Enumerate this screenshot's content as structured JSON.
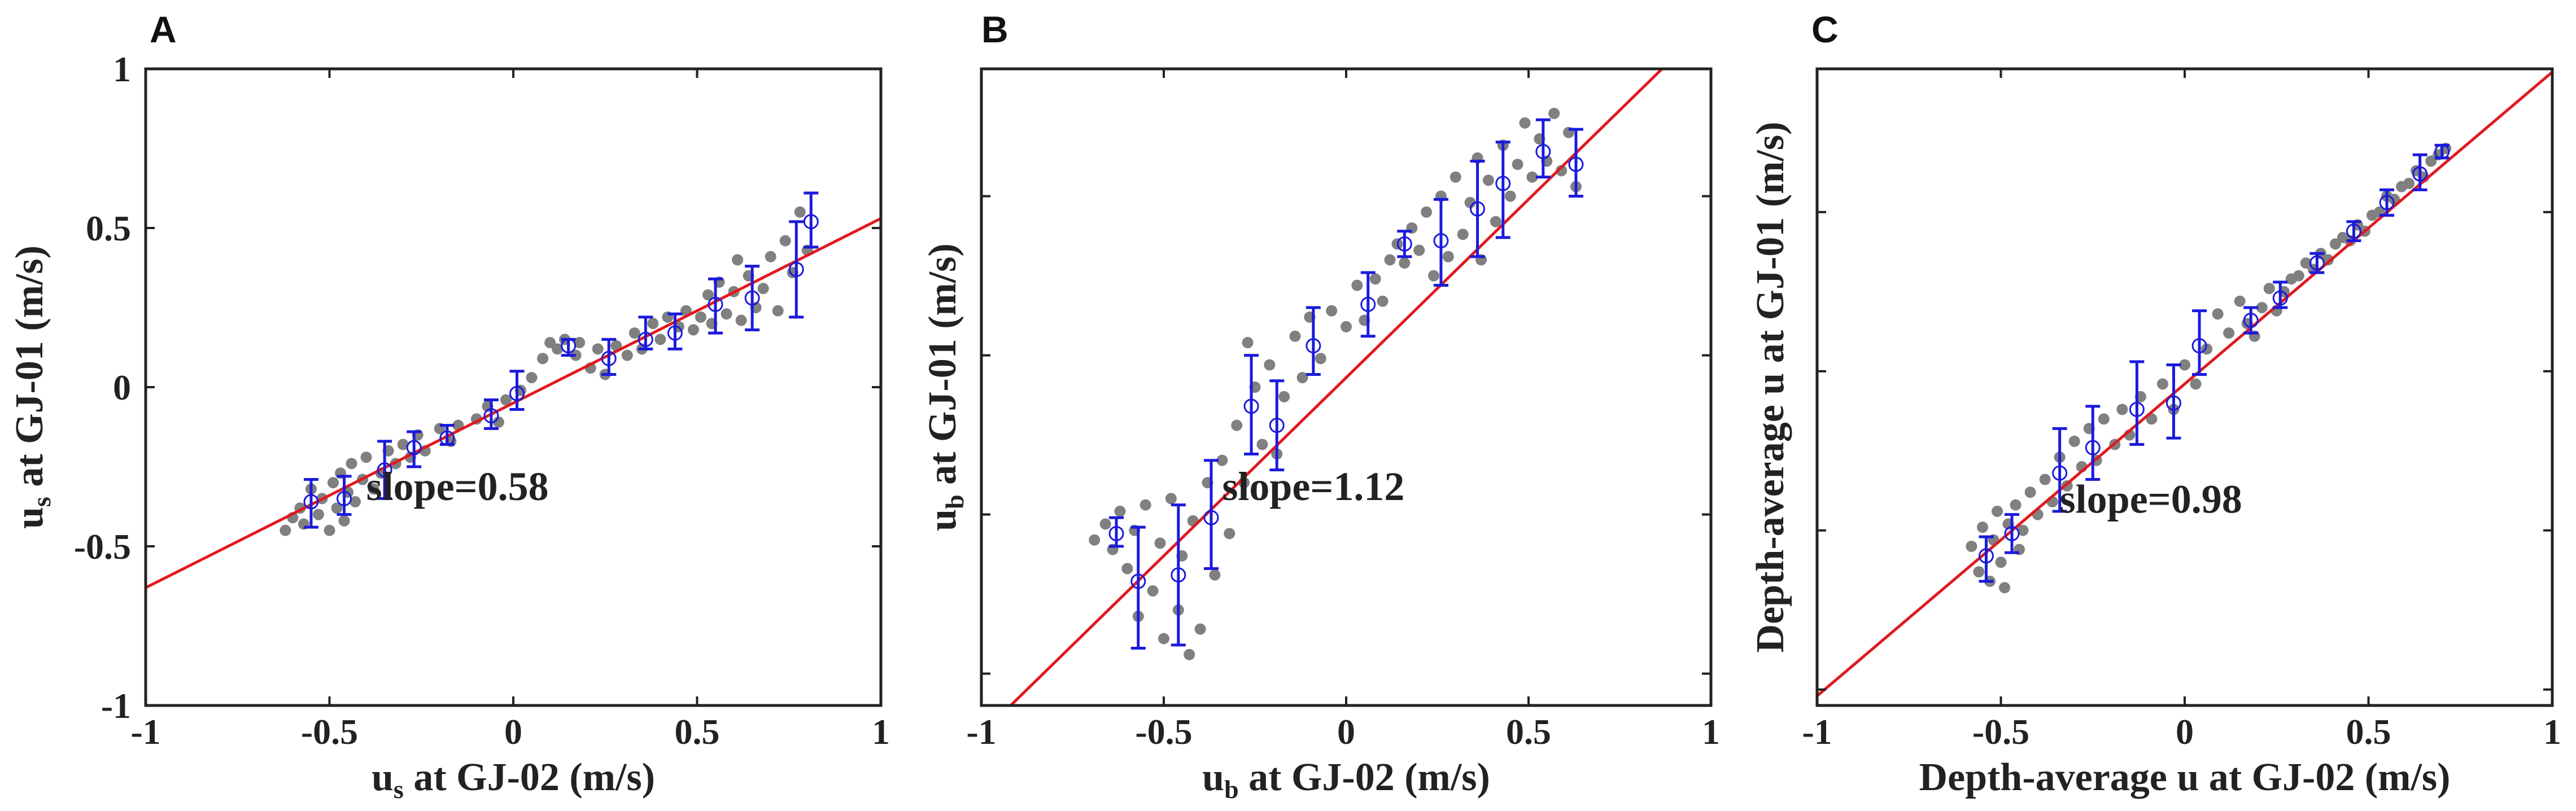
{
  "colors": {
    "scatter": "#808080",
    "errorbar": "#1a1adc",
    "fit": "#e0191f",
    "axis": "#222222",
    "background": "#ffffff"
  },
  "chart_data": [
    {
      "panel": "A",
      "type": "scatter",
      "xlabel": "u_s at GJ-02 (m/s)",
      "xlabel_parts": {
        "var": "u",
        "sub": "s",
        "rest": " at GJ-02 (m/s)"
      },
      "ylabel": "u_s at GJ-01 (m/s)",
      "ylabel_parts": {
        "var": "u",
        "sub": "s",
        "rest": " at GJ-01 (m/s)"
      },
      "xlim": [
        -1,
        1
      ],
      "ylim": [
        -1,
        1
      ],
      "xticks": [
        -1,
        -0.5,
        0,
        0.5,
        1
      ],
      "xtick_labels": [
        "-1",
        "-0.5",
        "0",
        "0.5",
        "1"
      ],
      "yticks": [
        -1,
        -0.5,
        0,
        0.5,
        1
      ],
      "ytick_labels": [
        "-1",
        "-0.5",
        "0",
        "0.5",
        "1"
      ],
      "annotation": "slope=0.58",
      "fit": {
        "slope": 0.58,
        "intercept": -0.05
      },
      "binned": [
        {
          "x": -0.55,
          "y": -0.36,
          "lo": -0.44,
          "hi": -0.29
        },
        {
          "x": -0.46,
          "y": -0.35,
          "lo": -0.4,
          "hi": -0.28
        },
        {
          "x": -0.35,
          "y": -0.26,
          "lo": -0.35,
          "hi": -0.17
        },
        {
          "x": -0.27,
          "y": -0.19,
          "lo": -0.25,
          "hi": -0.14
        },
        {
          "x": -0.18,
          "y": -0.16,
          "lo": -0.18,
          "hi": -0.12
        },
        {
          "x": -0.06,
          "y": -0.09,
          "lo": -0.13,
          "hi": -0.04
        },
        {
          "x": 0.01,
          "y": -0.02,
          "lo": -0.07,
          "hi": 0.05
        },
        {
          "x": 0.15,
          "y": 0.13,
          "lo": 0.1,
          "hi": 0.15
        },
        {
          "x": 0.26,
          "y": 0.09,
          "lo": 0.04,
          "hi": 0.15
        },
        {
          "x": 0.36,
          "y": 0.15,
          "lo": 0.12,
          "hi": 0.22
        },
        {
          "x": 0.44,
          "y": 0.17,
          "lo": 0.12,
          "hi": 0.23
        },
        {
          "x": 0.55,
          "y": 0.26,
          "lo": 0.17,
          "hi": 0.34
        },
        {
          "x": 0.65,
          "y": 0.28,
          "lo": 0.18,
          "hi": 0.38
        },
        {
          "x": 0.77,
          "y": 0.37,
          "lo": 0.22,
          "hi": 0.52
        },
        {
          "x": 0.81,
          "y": 0.52,
          "lo": 0.44,
          "hi": 0.61
        }
      ],
      "scatter": [
        {
          "x": -0.62,
          "y": -0.45
        },
        {
          "x": -0.6,
          "y": -0.41
        },
        {
          "x": -0.58,
          "y": -0.38
        },
        {
          "x": -0.57,
          "y": -0.43
        },
        {
          "x": -0.55,
          "y": -0.32
        },
        {
          "x": -0.53,
          "y": -0.4
        },
        {
          "x": -0.52,
          "y": -0.35
        },
        {
          "x": -0.5,
          "y": -0.45
        },
        {
          "x": -0.49,
          "y": -0.3
        },
        {
          "x": -0.48,
          "y": -0.38
        },
        {
          "x": -0.47,
          "y": -0.27
        },
        {
          "x": -0.46,
          "y": -0.42
        },
        {
          "x": -0.45,
          "y": -0.33
        },
        {
          "x": -0.44,
          "y": -0.24
        },
        {
          "x": -0.43,
          "y": -0.36
        },
        {
          "x": -0.41,
          "y": -0.29
        },
        {
          "x": -0.4,
          "y": -0.22
        },
        {
          "x": -0.38,
          "y": -0.32
        },
        {
          "x": -0.36,
          "y": -0.27
        },
        {
          "x": -0.34,
          "y": -0.2
        },
        {
          "x": -0.32,
          "y": -0.24
        },
        {
          "x": -0.3,
          "y": -0.18
        },
        {
          "x": -0.28,
          "y": -0.22
        },
        {
          "x": -0.26,
          "y": -0.15
        },
        {
          "x": -0.24,
          "y": -0.2
        },
        {
          "x": -0.2,
          "y": -0.13
        },
        {
          "x": -0.17,
          "y": -0.17
        },
        {
          "x": -0.15,
          "y": -0.12
        },
        {
          "x": -0.1,
          "y": -0.1
        },
        {
          "x": -0.07,
          "y": -0.06
        },
        {
          "x": -0.04,
          "y": -0.11
        },
        {
          "x": -0.02,
          "y": -0.04
        },
        {
          "x": 0.02,
          "y": -0.01
        },
        {
          "x": 0.05,
          "y": 0.03
        },
        {
          "x": 0.08,
          "y": 0.09
        },
        {
          "x": 0.1,
          "y": 0.14
        },
        {
          "x": 0.12,
          "y": 0.12
        },
        {
          "x": 0.14,
          "y": 0.15
        },
        {
          "x": 0.17,
          "y": 0.1
        },
        {
          "x": 0.18,
          "y": 0.14
        },
        {
          "x": 0.21,
          "y": 0.06
        },
        {
          "x": 0.23,
          "y": 0.12
        },
        {
          "x": 0.25,
          "y": 0.04
        },
        {
          "x": 0.28,
          "y": 0.13
        },
        {
          "x": 0.31,
          "y": 0.1
        },
        {
          "x": 0.33,
          "y": 0.17
        },
        {
          "x": 0.35,
          "y": 0.12
        },
        {
          "x": 0.38,
          "y": 0.2
        },
        {
          "x": 0.4,
          "y": 0.15
        },
        {
          "x": 0.42,
          "y": 0.22
        },
        {
          "x": 0.45,
          "y": 0.19
        },
        {
          "x": 0.47,
          "y": 0.24
        },
        {
          "x": 0.49,
          "y": 0.18
        },
        {
          "x": 0.51,
          "y": 0.22
        },
        {
          "x": 0.53,
          "y": 0.29
        },
        {
          "x": 0.54,
          "y": 0.2
        },
        {
          "x": 0.56,
          "y": 0.33
        },
        {
          "x": 0.58,
          "y": 0.23
        },
        {
          "x": 0.6,
          "y": 0.3
        },
        {
          "x": 0.61,
          "y": 0.4
        },
        {
          "x": 0.62,
          "y": 0.21
        },
        {
          "x": 0.64,
          "y": 0.35
        },
        {
          "x": 0.66,
          "y": 0.25
        },
        {
          "x": 0.68,
          "y": 0.31
        },
        {
          "x": 0.7,
          "y": 0.41
        },
        {
          "x": 0.72,
          "y": 0.24
        },
        {
          "x": 0.74,
          "y": 0.46
        },
        {
          "x": 0.76,
          "y": 0.36
        },
        {
          "x": 0.78,
          "y": 0.55
        },
        {
          "x": 0.8,
          "y": 0.43
        }
      ]
    },
    {
      "panel": "B",
      "type": "scatter",
      "xlabel": "u_b at GJ-02 (m/s)",
      "xlabel_parts": {
        "var": "u",
        "sub": "b",
        "rest": " at GJ-02 (m/s)"
      },
      "ylabel": "u_b at GJ-01 (m/s)",
      "ylabel_parts": {
        "var": "u",
        "sub": "b",
        "rest": " at GJ-01 (m/s)"
      },
      "xlim": [
        -1,
        1
      ],
      "ylim": [
        -1.1,
        0.9
      ],
      "xticks": [
        -1,
        -0.5,
        0,
        0.5,
        1
      ],
      "xtick_labels": [
        "-1",
        "-0.5",
        "0",
        "0.5",
        "1"
      ],
      "yticks": [
        -1,
        -0.5,
        0,
        0.5
      ],
      "ytick_labels": [],
      "annotation": "slope=1.12",
      "fit": {
        "slope": 1.12,
        "intercept": -0.07
      },
      "binned": [
        {
          "x": -0.63,
          "y": -0.56,
          "lo": -0.6,
          "hi": -0.51
        },
        {
          "x": -0.57,
          "y": -0.71,
          "lo": -0.92,
          "hi": -0.54
        },
        {
          "x": -0.46,
          "y": -0.69,
          "lo": -0.91,
          "hi": -0.47
        },
        {
          "x": -0.37,
          "y": -0.51,
          "lo": -0.67,
          "hi": -0.33
        },
        {
          "x": -0.26,
          "y": -0.16,
          "lo": -0.31,
          "hi": 0.0
        },
        {
          "x": -0.19,
          "y": -0.22,
          "lo": -0.36,
          "hi": -0.08
        },
        {
          "x": -0.09,
          "y": 0.03,
          "lo": -0.06,
          "hi": 0.15
        },
        {
          "x": 0.06,
          "y": 0.16,
          "lo": 0.06,
          "hi": 0.26
        },
        {
          "x": 0.16,
          "y": 0.35,
          "lo": 0.31,
          "hi": 0.39
        },
        {
          "x": 0.26,
          "y": 0.36,
          "lo": 0.22,
          "hi": 0.49
        },
        {
          "x": 0.36,
          "y": 0.46,
          "lo": 0.31,
          "hi": 0.61
        },
        {
          "x": 0.43,
          "y": 0.54,
          "lo": 0.37,
          "hi": 0.67
        },
        {
          "x": 0.54,
          "y": 0.64,
          "lo": 0.56,
          "hi": 0.74
        },
        {
          "x": 0.63,
          "y": 0.6,
          "lo": 0.5,
          "hi": 0.71
        }
      ],
      "scatter": [
        {
          "x": -0.69,
          "y": -0.58
        },
        {
          "x": -0.66,
          "y": -0.53
        },
        {
          "x": -0.64,
          "y": -0.61
        },
        {
          "x": -0.62,
          "y": -0.49
        },
        {
          "x": -0.6,
          "y": -0.67
        },
        {
          "x": -0.58,
          "y": -0.55
        },
        {
          "x": -0.57,
          "y": -0.82
        },
        {
          "x": -0.55,
          "y": -0.47
        },
        {
          "x": -0.53,
          "y": -0.74
        },
        {
          "x": -0.51,
          "y": -0.59
        },
        {
          "x": -0.5,
          "y": -0.89
        },
        {
          "x": -0.48,
          "y": -0.45
        },
        {
          "x": -0.46,
          "y": -0.8
        },
        {
          "x": -0.45,
          "y": -0.63
        },
        {
          "x": -0.43,
          "y": -0.94
        },
        {
          "x": -0.42,
          "y": -0.52
        },
        {
          "x": -0.4,
          "y": -0.86
        },
        {
          "x": -0.38,
          "y": -0.4
        },
        {
          "x": -0.36,
          "y": -0.69
        },
        {
          "x": -0.34,
          "y": -0.33
        },
        {
          "x": -0.32,
          "y": -0.56
        },
        {
          "x": -0.3,
          "y": -0.22
        },
        {
          "x": -0.28,
          "y": -0.4
        },
        {
          "x": -0.27,
          "y": 0.04
        },
        {
          "x": -0.25,
          "y": -0.1
        },
        {
          "x": -0.23,
          "y": -0.28
        },
        {
          "x": -0.21,
          "y": -0.03
        },
        {
          "x": -0.19,
          "y": -0.31
        },
        {
          "x": -0.17,
          "y": -0.13
        },
        {
          "x": -0.14,
          "y": 0.06
        },
        {
          "x": -0.12,
          "y": -0.07
        },
        {
          "x": -0.1,
          "y": 0.12
        },
        {
          "x": -0.07,
          "y": -0.01
        },
        {
          "x": -0.04,
          "y": 0.14
        },
        {
          "x": 0.0,
          "y": 0.09
        },
        {
          "x": 0.03,
          "y": 0.22
        },
        {
          "x": 0.05,
          "y": 0.11
        },
        {
          "x": 0.08,
          "y": 0.24
        },
        {
          "x": 0.1,
          "y": 0.17
        },
        {
          "x": 0.12,
          "y": 0.3
        },
        {
          "x": 0.14,
          "y": 0.35
        },
        {
          "x": 0.16,
          "y": 0.29
        },
        {
          "x": 0.18,
          "y": 0.4
        },
        {
          "x": 0.2,
          "y": 0.33
        },
        {
          "x": 0.22,
          "y": 0.45
        },
        {
          "x": 0.24,
          "y": 0.25
        },
        {
          "x": 0.26,
          "y": 0.5
        },
        {
          "x": 0.28,
          "y": 0.31
        },
        {
          "x": 0.3,
          "y": 0.56
        },
        {
          "x": 0.32,
          "y": 0.38
        },
        {
          "x": 0.34,
          "y": 0.48
        },
        {
          "x": 0.36,
          "y": 0.62
        },
        {
          "x": 0.37,
          "y": 0.3
        },
        {
          "x": 0.39,
          "y": 0.55
        },
        {
          "x": 0.41,
          "y": 0.42
        },
        {
          "x": 0.43,
          "y": 0.66
        },
        {
          "x": 0.45,
          "y": 0.5
        },
        {
          "x": 0.47,
          "y": 0.6
        },
        {
          "x": 0.49,
          "y": 0.73
        },
        {
          "x": 0.51,
          "y": 0.56
        },
        {
          "x": 0.53,
          "y": 0.68
        },
        {
          "x": 0.55,
          "y": 0.61
        },
        {
          "x": 0.57,
          "y": 0.76
        },
        {
          "x": 0.59,
          "y": 0.58
        },
        {
          "x": 0.61,
          "y": 0.7
        },
        {
          "x": 0.63,
          "y": 0.53
        }
      ]
    },
    {
      "panel": "C",
      "type": "scatter",
      "xlabel": "Depth-average u at GJ-02 (m/s)",
      "ylabel": "Depth-average u at GJ-01 (m/s)",
      "xlim": [
        -1,
        1
      ],
      "ylim": [
        -1.05,
        0.95
      ],
      "xticks": [
        -1,
        -0.5,
        0,
        0.5,
        1
      ],
      "xtick_labels": [
        "-1",
        "-0.5",
        "0",
        "0.5",
        "1"
      ],
      "yticks": [
        -1,
        -0.5,
        0,
        0.5
      ],
      "ytick_labels": [],
      "annotation": "slope=0.98",
      "fit": {
        "slope": 0.98,
        "intercept": -0.04
      },
      "binned": [
        {
          "x": -0.54,
          "y": -0.58,
          "lo": -0.66,
          "hi": -0.52
        },
        {
          "x": -0.47,
          "y": -0.51,
          "lo": -0.57,
          "hi": -0.45
        },
        {
          "x": -0.34,
          "y": -0.32,
          "lo": -0.44,
          "hi": -0.18
        },
        {
          "x": -0.25,
          "y": -0.24,
          "lo": -0.34,
          "hi": -0.11
        },
        {
          "x": -0.13,
          "y": -0.12,
          "lo": -0.23,
          "hi": 0.03
        },
        {
          "x": -0.03,
          "y": -0.1,
          "lo": -0.21,
          "hi": 0.02
        },
        {
          "x": 0.04,
          "y": 0.08,
          "lo": -0.01,
          "hi": 0.19
        },
        {
          "x": 0.18,
          "y": 0.16,
          "lo": 0.12,
          "hi": 0.2
        },
        {
          "x": 0.26,
          "y": 0.23,
          "lo": 0.2,
          "hi": 0.28
        },
        {
          "x": 0.36,
          "y": 0.34,
          "lo": 0.31,
          "hi": 0.37
        },
        {
          "x": 0.46,
          "y": 0.44,
          "lo": 0.41,
          "hi": 0.47
        },
        {
          "x": 0.55,
          "y": 0.53,
          "lo": 0.49,
          "hi": 0.57
        },
        {
          "x": 0.64,
          "y": 0.62,
          "lo": 0.57,
          "hi": 0.68
        },
        {
          "x": 0.7,
          "y": 0.69,
          "lo": 0.67,
          "hi": 0.71
        }
      ],
      "scatter": [
        {
          "x": -0.58,
          "y": -0.55
        },
        {
          "x": -0.56,
          "y": -0.63
        },
        {
          "x": -0.55,
          "y": -0.49
        },
        {
          "x": -0.53,
          "y": -0.66
        },
        {
          "x": -0.52,
          "y": -0.53
        },
        {
          "x": -0.51,
          "y": -0.44
        },
        {
          "x": -0.5,
          "y": -0.6
        },
        {
          "x": -0.49,
          "y": -0.68
        },
        {
          "x": -0.48,
          "y": -0.48
        },
        {
          "x": -0.46,
          "y": -0.42
        },
        {
          "x": -0.45,
          "y": -0.56
        },
        {
          "x": -0.44,
          "y": -0.5
        },
        {
          "x": -0.42,
          "y": -0.38
        },
        {
          "x": -0.4,
          "y": -0.45
        },
        {
          "x": -0.38,
          "y": -0.34
        },
        {
          "x": -0.36,
          "y": -0.41
        },
        {
          "x": -0.34,
          "y": -0.27
        },
        {
          "x": -0.32,
          "y": -0.36
        },
        {
          "x": -0.3,
          "y": -0.22
        },
        {
          "x": -0.28,
          "y": -0.3
        },
        {
          "x": -0.26,
          "y": -0.18
        },
        {
          "x": -0.24,
          "y": -0.28
        },
        {
          "x": -0.22,
          "y": -0.15
        },
        {
          "x": -0.19,
          "y": -0.23
        },
        {
          "x": -0.17,
          "y": -0.12
        },
        {
          "x": -0.15,
          "y": -0.2
        },
        {
          "x": -0.12,
          "y": -0.08
        },
        {
          "x": -0.09,
          "y": -0.15
        },
        {
          "x": -0.06,
          "y": -0.04
        },
        {
          "x": -0.03,
          "y": -0.12
        },
        {
          "x": 0.0,
          "y": 0.02
        },
        {
          "x": 0.03,
          "y": -0.04
        },
        {
          "x": 0.06,
          "y": 0.07
        },
        {
          "x": 0.09,
          "y": 0.18
        },
        {
          "x": 0.12,
          "y": 0.12
        },
        {
          "x": 0.15,
          "y": 0.22
        },
        {
          "x": 0.17,
          "y": 0.15
        },
        {
          "x": 0.19,
          "y": 0.11
        },
        {
          "x": 0.21,
          "y": 0.2
        },
        {
          "x": 0.23,
          "y": 0.26
        },
        {
          "x": 0.25,
          "y": 0.19
        },
        {
          "x": 0.27,
          "y": 0.25
        },
        {
          "x": 0.29,
          "y": 0.29
        },
        {
          "x": 0.31,
          "y": 0.3
        },
        {
          "x": 0.33,
          "y": 0.34
        },
        {
          "x": 0.35,
          "y": 0.32
        },
        {
          "x": 0.37,
          "y": 0.37
        },
        {
          "x": 0.39,
          "y": 0.35
        },
        {
          "x": 0.41,
          "y": 0.4
        },
        {
          "x": 0.43,
          "y": 0.42
        },
        {
          "x": 0.45,
          "y": 0.41
        },
        {
          "x": 0.47,
          "y": 0.46
        },
        {
          "x": 0.49,
          "y": 0.44
        },
        {
          "x": 0.51,
          "y": 0.49
        },
        {
          "x": 0.53,
          "y": 0.5
        },
        {
          "x": 0.55,
          "y": 0.55
        },
        {
          "x": 0.57,
          "y": 0.54
        },
        {
          "x": 0.59,
          "y": 0.58
        },
        {
          "x": 0.61,
          "y": 0.59
        },
        {
          "x": 0.63,
          "y": 0.63
        },
        {
          "x": 0.65,
          "y": 0.61
        },
        {
          "x": 0.67,
          "y": 0.66
        },
        {
          "x": 0.69,
          "y": 0.68
        },
        {
          "x": 0.71,
          "y": 0.7
        }
      ]
    }
  ]
}
